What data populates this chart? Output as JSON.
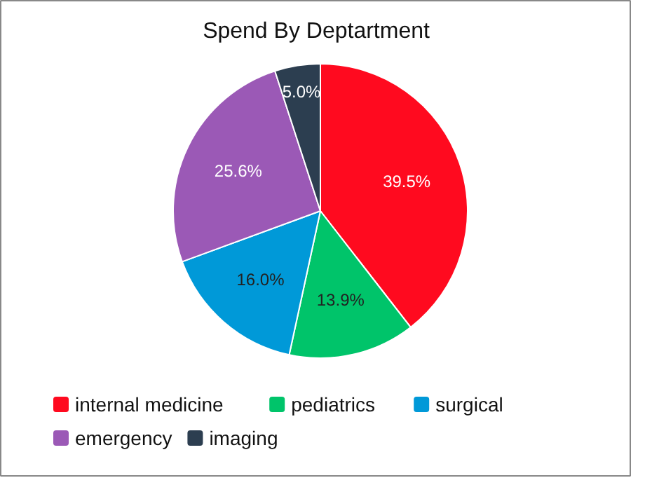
{
  "chart_data": {
    "type": "pie",
    "title": "Spend By Deptartment",
    "categories": [
      "internal medicine",
      "pediatrics",
      "surgical",
      "emergency",
      "imaging"
    ],
    "values": [
      39.5,
      13.9,
      16.0,
      25.6,
      5.0
    ],
    "colors": [
      "#ff0a1f",
      "#00c46a",
      "#0099d8",
      "#9b59b6",
      "#2c3e50"
    ],
    "value_labels": [
      "39.5%",
      "13.9%",
      "16.0%",
      "25.6%",
      "5.0%"
    ],
    "legend": "bottom"
  }
}
